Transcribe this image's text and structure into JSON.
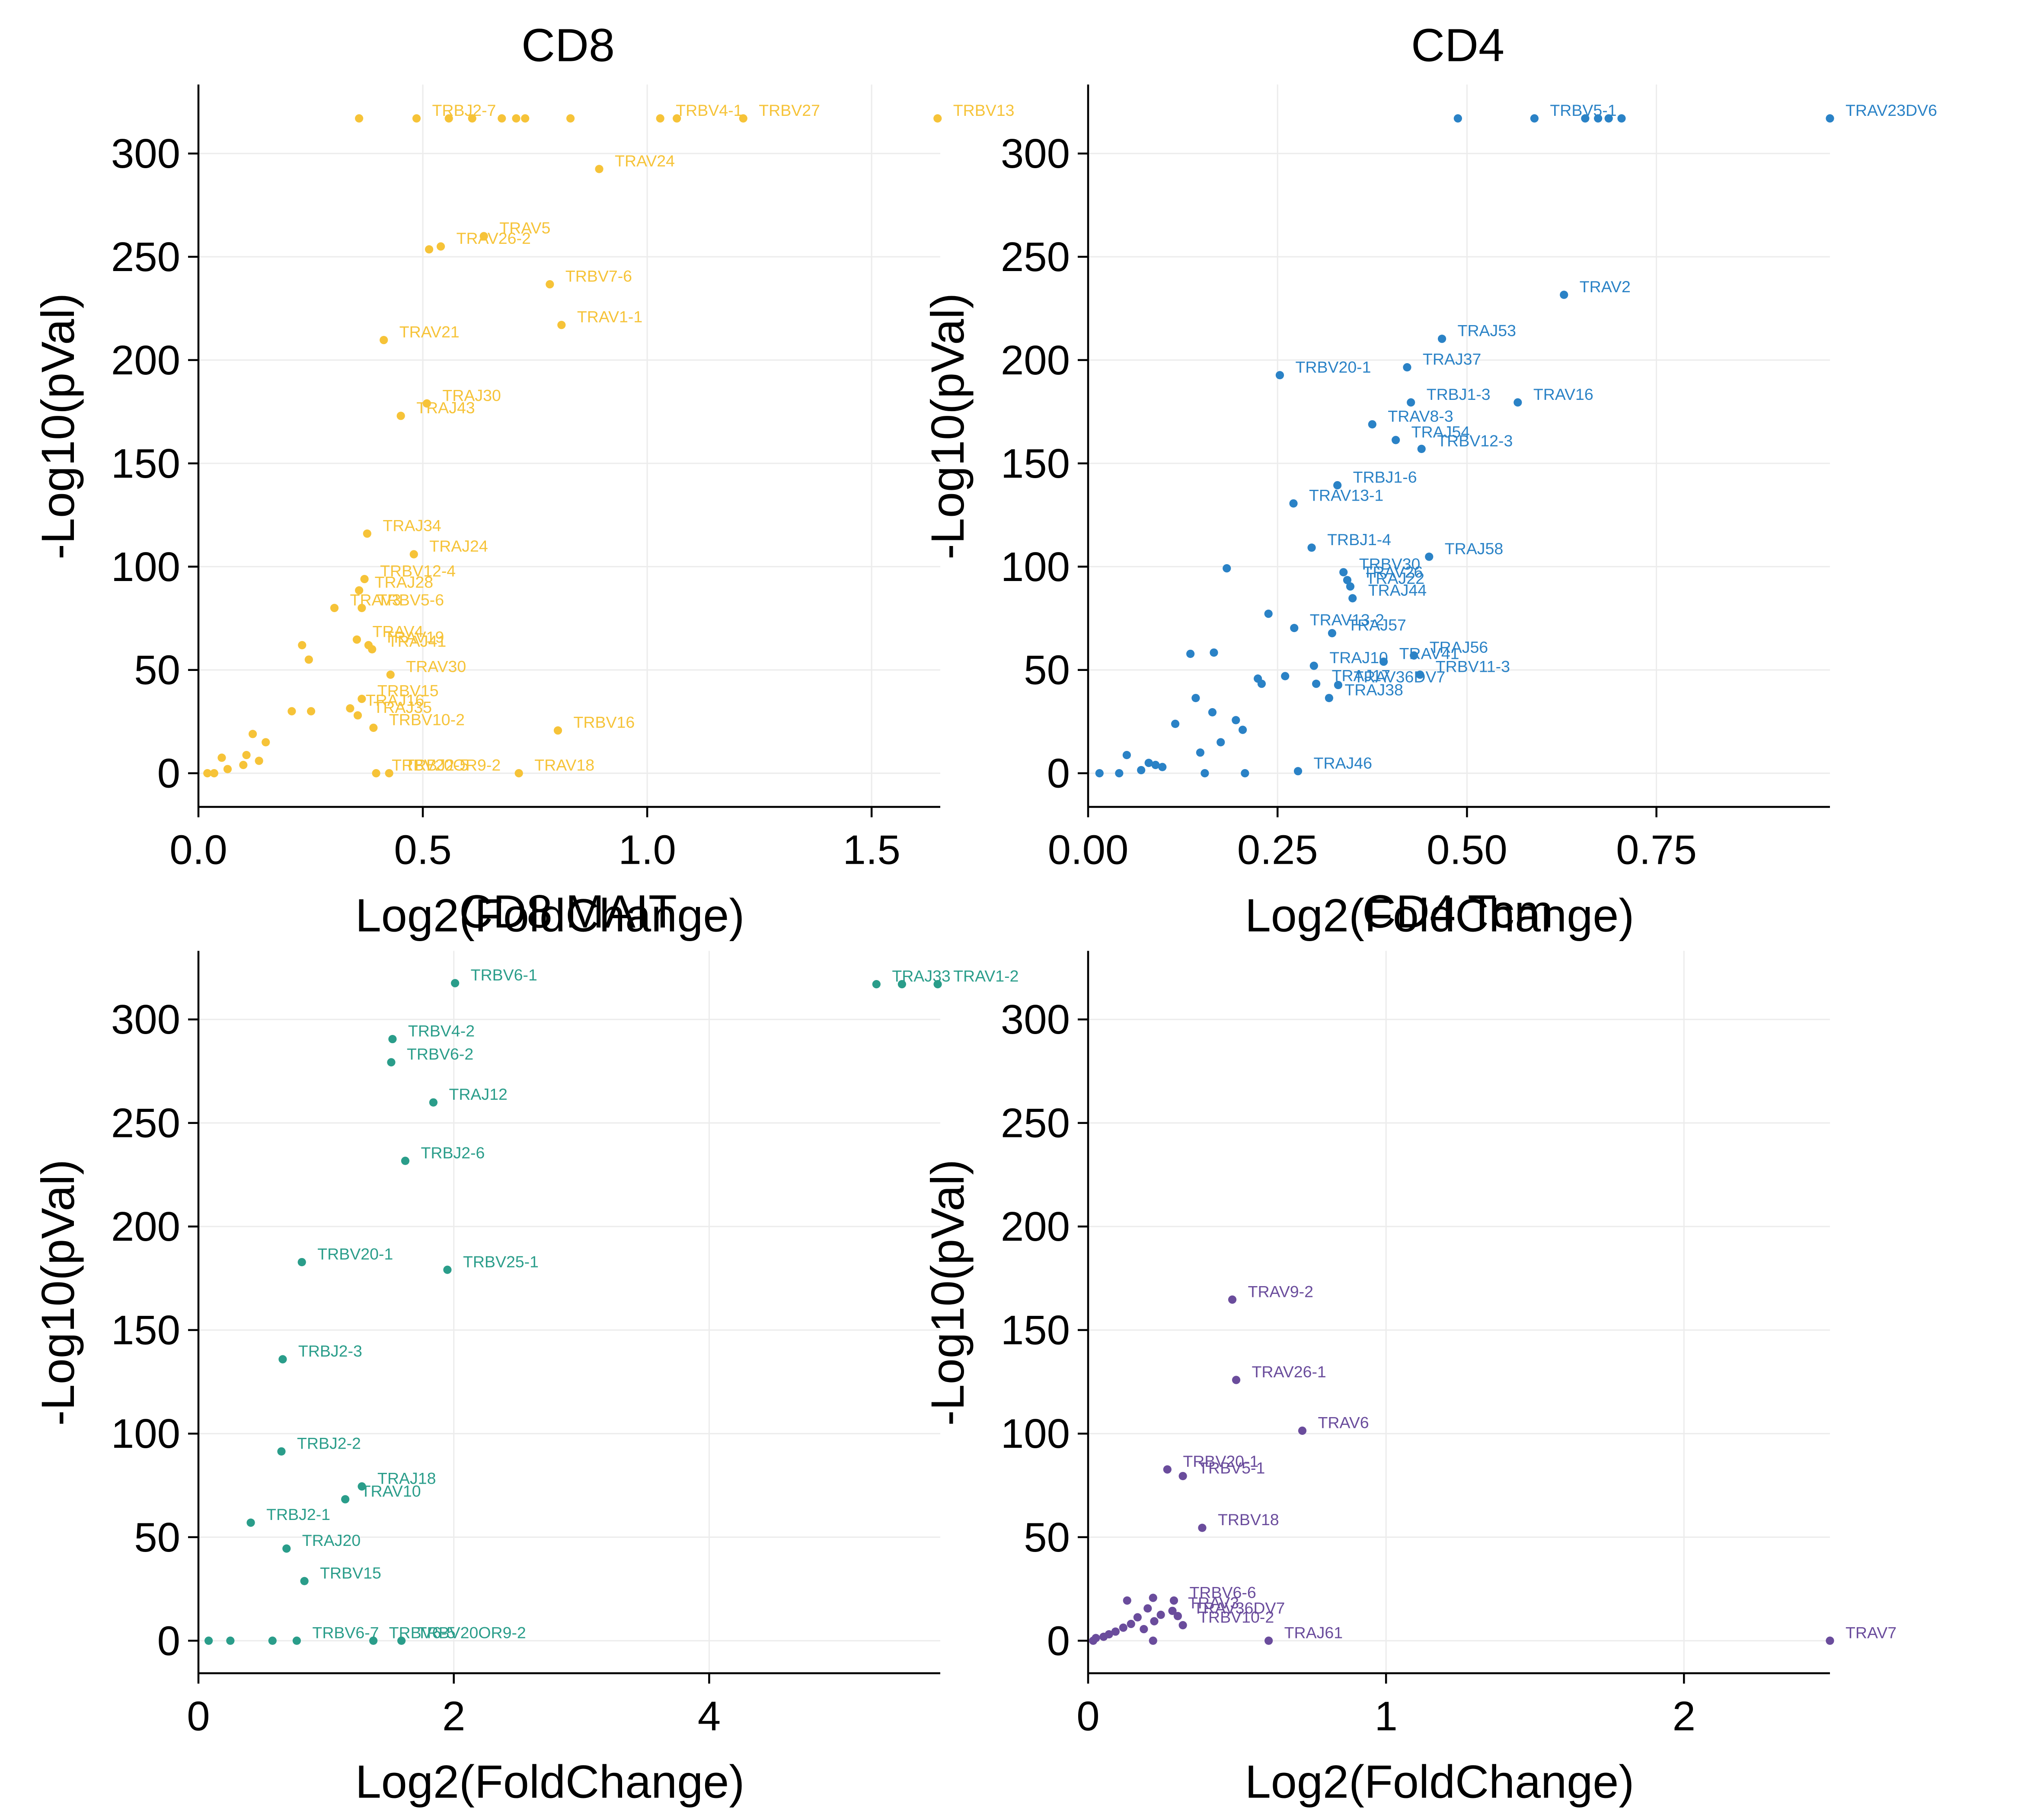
{
  "chart_data": [
    {
      "type": "scatter",
      "title": "CD8",
      "xlabel": "Log2(FoldChange)",
      "ylabel": "-Log10(pVal)",
      "color": "#f6c338",
      "grid": true,
      "xlim": [
        0,
        1.653
      ],
      "ylim": [
        -16.3,
        333.4
      ],
      "xticks": [
        {
          "value": 0,
          "label": "0.0"
        },
        0.5,
        {
          "value": 1,
          "label": "1.0"
        },
        1.5
      ],
      "yticks": [
        0,
        50,
        100,
        150,
        200,
        250,
        300
      ],
      "x": [
        0.358,
        0.486,
        0.558,
        0.61,
        0.676,
        0.708,
        0.728,
        0.829,
        1.029,
        1.066,
        1.214,
        1.647,
        0.893,
        0.636,
        0.54,
        0.514,
        0.783,
        0.809,
        0.413,
        0.509,
        0.451,
        0.376,
        0.48,
        0.37,
        0.358,
        0.303,
        0.364,
        0.353,
        0.379,
        0.387,
        0.231,
        0.246,
        0.428,
        0.364,
        0.338,
        0.355,
        0.39,
        0.801,
        0.208,
        0.251,
        0.121,
        0.15,
        0.052,
        0.107,
        0.02,
        0.396,
        0.425,
        0.714,
        0.035,
        0.065,
        0.1,
        0.135
      ],
      "values": [
        317,
        317,
        317,
        317,
        317,
        317,
        317,
        317,
        317,
        317,
        317,
        317,
        292.5,
        260,
        255,
        253.6,
        236.7,
        217,
        209.7,
        179,
        173,
        116,
        106,
        94,
        88.5,
        80,
        80,
        64.7,
        62,
        60,
        62,
        55,
        47.7,
        36,
        31.4,
        28,
        22,
        20.7,
        30,
        30,
        19,
        15,
        7.5,
        8.8,
        0,
        0,
        0,
        0,
        0,
        2,
        4,
        6
      ],
      "labels": [
        null,
        "TRBJ2-7",
        null,
        null,
        null,
        null,
        null,
        null,
        "TRBV4-1",
        null,
        "TRBV27",
        "TRBV13",
        "TRAV24",
        "TRAV5",
        "TRAV26-2",
        null,
        "TRBV7-6",
        "TRAV1-1",
        "TRAV21",
        "TRAJ30",
        "TRAJ43",
        "TRAJ34",
        "TRAJ24",
        "TRBV12-4",
        "TRAJ28",
        "TRAV3",
        "TRBV5-6",
        "TRAV4",
        "TRAV19",
        "TRAJ41",
        null,
        null,
        "TRAV30",
        "TRBV15",
        "TRAJ16",
        "TRAJ35",
        "TRBV10-2",
        "TRBV16",
        null,
        null,
        null,
        null,
        null,
        null,
        null,
        "TRBV20OR9-2",
        "TRBJ2-5",
        "TRAV18",
        null,
        null,
        null,
        null
      ]
    },
    {
      "type": "scatter",
      "title": "CD4",
      "xlabel": "Log2(FoldChange)",
      "ylabel": "-Log10(pVal)",
      "color": "#2a82c6",
      "grid": true,
      "xlim": [
        0,
        0.979
      ],
      "ylim": [
        -16.3,
        333.4
      ],
      "xticks": [
        {
          "value": 0,
          "label": "0.00"
        },
        0.25,
        {
          "value": 0.5,
          "label": "0.50"
        },
        0.75
      ],
      "yticks": [
        0,
        50,
        100,
        150,
        200,
        250,
        300
      ],
      "x": [
        0.488,
        0.589,
        0.656,
        0.673,
        0.687,
        0.704,
        0.979,
        0.628,
        0.467,
        0.421,
        0.253,
        0.426,
        0.567,
        0.375,
        0.406,
        0.44,
        0.329,
        0.271,
        0.295,
        0.183,
        0.45,
        0.337,
        0.342,
        0.346,
        0.349,
        0.238,
        0.272,
        0.322,
        0.135,
        0.166,
        0.39,
        0.43,
        0.438,
        0.301,
        0.298,
        0.33,
        0.318,
        0.224,
        0.229,
        0.26,
        0.142,
        0.115,
        0.164,
        0.195,
        0.204,
        0.175,
        0.148,
        0.051,
        0.08,
        0.089,
        0.041,
        0.015,
        0.07,
        0.098,
        0.277,
        0.154,
        0.207
      ],
      "values": [
        317,
        317,
        317,
        317,
        317,
        317,
        317,
        231.6,
        210.3,
        196.5,
        192.7,
        179.5,
        179.5,
        168.9,
        161.3,
        157,
        139.4,
        130.6,
        109.2,
        99.2,
        104.8,
        97.3,
        93.5,
        90.4,
        84.7,
        77.2,
        70.3,
        67.8,
        57.8,
        58.4,
        54,
        57,
        47.7,
        43.3,
        52,
        42.7,
        36.4,
        45.8,
        43.3,
        47,
        36.4,
        23.9,
        29.5,
        25.7,
        21,
        15,
        10,
        8.8,
        5,
        4,
        0,
        0,
        1.5,
        3,
        1,
        0,
        0
      ],
      "labels": [
        null,
        "TRBV5-1",
        null,
        null,
        null,
        null,
        "TRAV23DV6",
        "TRAV2",
        "TRAJ53",
        "TRAJ37",
        "TRBV20-1",
        "TRBJ1-3",
        "TRAV16",
        "TRAV8-3",
        "TRAJ54",
        "TRBV12-3",
        "TRBJ1-6",
        "TRAV13-1",
        "TRBJ1-4",
        null,
        "TRAJ58",
        "TRBV30",
        "TRAV26",
        "TRAJ22",
        "TRAJ44",
        null,
        "TRAV13-2",
        "TRAJ57",
        null,
        null,
        "TRAV41",
        "TRAJ56",
        "TRBV11-3",
        "TRAJ17",
        "TRAJ10",
        "TRAV36DV7",
        "TRAJ38",
        null,
        null,
        null,
        null,
        null,
        null,
        null,
        null,
        null,
        null,
        null,
        null,
        null,
        null,
        null,
        null,
        null,
        "TRAJ46",
        null,
        null
      ]
    },
    {
      "type": "scatter",
      "title": "CD8 MAIT",
      "xlabel": "Log2(FoldChange)",
      "ylabel": "-Log10(pVal)",
      "color": "#2a9d8a",
      "grid": true,
      "xlim": [
        0,
        5.81
      ],
      "ylim": [
        -15.7,
        333.1
      ],
      "xticks": [
        0,
        2,
        4
      ],
      "yticks": [
        0,
        50,
        100,
        150,
        200,
        250,
        300
      ],
      "x": [
        5.31,
        5.51,
        5.79,
        2.01,
        1.52,
        1.51,
        1.84,
        1.62,
        0.81,
        1.95,
        0.66,
        0.65,
        1.28,
        1.15,
        0.41,
        0.69,
        0.83,
        0.77,
        1.37,
        1.59,
        0.08,
        0.25,
        0.58
      ],
      "values": [
        317,
        317,
        317,
        317.5,
        290.5,
        279.3,
        259.9,
        231.7,
        182.8,
        179.1,
        135.9,
        91.4,
        74.5,
        68.3,
        57,
        44.5,
        28.8,
        0,
        0,
        0,
        0,
        0,
        0
      ],
      "labels": [
        "TRAJ33",
        null,
        "TRAV1-2",
        "TRBV6-1",
        "TRBV4-2",
        "TRBV6-2",
        "TRAJ12",
        "TRBJ2-6",
        "TRBV20-1",
        "TRBV25-1",
        "TRBJ2-3",
        "TRBJ2-2",
        "TRAJ18",
        "TRAV10",
        "TRBJ2-1",
        "TRAJ20",
        "TRBV15",
        "TRBV6-7",
        "TRBV6-5",
        "TRBV20OR9-2",
        null,
        null,
        null
      ]
    },
    {
      "type": "scatter",
      "title": "CD4 Tcm",
      "xlabel": "Log2(FoldChange)",
      "ylabel": "-Log10(pVal)",
      "color": "#6a4c9c",
      "grid": true,
      "xlim": [
        0,
        2.49
      ],
      "ylim": [
        -15.7,
        333.1
      ],
      "xticks": [
        0,
        1,
        2
      ],
      "yticks": [
        0,
        50,
        100,
        150,
        200,
        250,
        300
      ],
      "x": [
        0.484,
        0.497,
        0.719,
        0.266,
        0.318,
        0.383,
        0.288,
        0.283,
        0.301,
        0.318,
        0.606,
        2.49,
        0.131,
        0.2,
        0.166,
        0.218,
        0.092,
        0.052,
        0.026,
        0.017,
        0.118,
        0.144,
        0.222,
        0.244,
        0.187,
        0.07,
        0.218
      ],
      "values": [
        164.7,
        125.9,
        101.4,
        82.7,
        79.5,
        54.5,
        19.4,
        14.4,
        11.9,
        7.5,
        0,
        0,
        19.4,
        15.6,
        11.3,
        20.7,
        4.4,
        1.9,
        1.3,
        0,
        6.3,
        8.1,
        9.4,
        12.5,
        5.6,
        3.1,
        0
      ],
      "labels": [
        "TRAV9-2",
        "TRAV26-1",
        "TRAV6",
        "TRBV20-1",
        "TRBV5-1",
        "TRBV18",
        "TRBV6-6",
        "TRAV3",
        "TRAV36DV7",
        "TRBV10-2",
        "TRAJ61",
        "TRAV7",
        null,
        null,
        null,
        null,
        null,
        null,
        null,
        null,
        null,
        null,
        null,
        null,
        null,
        null,
        null
      ]
    }
  ]
}
